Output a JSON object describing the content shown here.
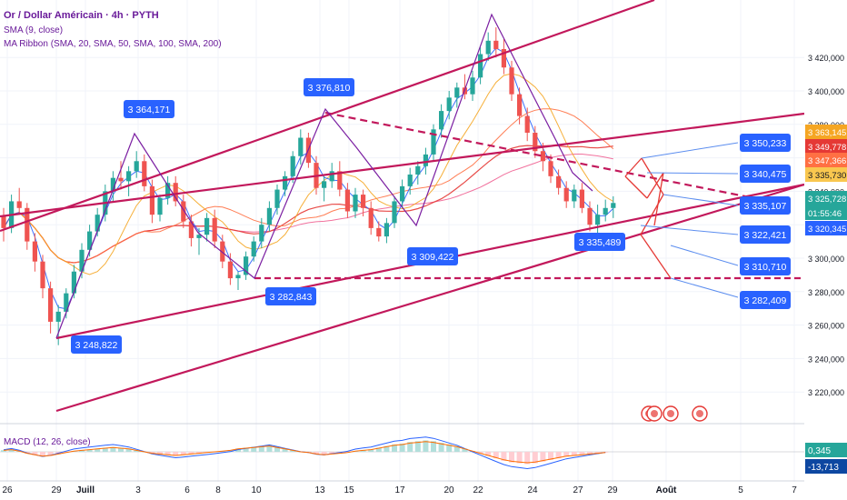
{
  "legend": {
    "symbol": "Or / Dollar Américain · 4h · PYTH",
    "sma": "SMA (9, close)",
    "ribbon": "MA Ribbon (SMA, 20, SMA, 50, SMA, 100, SMA, 200)",
    "macd": "MACD (12, 26, close)"
  },
  "colors": {
    "bull": "#26a69a",
    "bear": "#ef5350",
    "channel": "#c2185b",
    "sma9": "#2962ff",
    "sma20": "#f5a623",
    "sma50": "#ff7043",
    "sma100": "#e53935",
    "sma200": "#f06292",
    "callout": "#2962ff",
    "macd_line": "#2962ff",
    "signal_line": "#ff6d00"
  },
  "chart_data": [
    {
      "type": "candlestick",
      "title": "Or / Dollar Américain · 4h · PYTH",
      "y_range": [
        3200,
        3440
      ],
      "price_ticks": [
        "3 220,000",
        "3 240,000",
        "3 260,000",
        "3 280,000",
        "3 300,000",
        "3 320,000",
        "3 340,000",
        "3 360,000",
        "3 380,000",
        "3 400,000",
        "3 420,000"
      ],
      "x_ticks": [
        "26",
        "29",
        "Juill",
        "3",
        "6",
        "8",
        "10",
        "13",
        "15",
        "17",
        "20",
        "22",
        "24",
        "27",
        "29",
        "Août",
        "5",
        "7"
      ],
      "candles": [
        [
          3325,
          3330,
          3310,
          3318
        ],
        [
          3318,
          3338,
          3315,
          3334
        ],
        [
          3334,
          3342,
          3326,
          3330
        ],
        [
          3330,
          3333,
          3305,
          3310
        ],
        [
          3310,
          3315,
          3292,
          3298
        ],
        [
          3298,
          3302,
          3276,
          3282
        ],
        [
          3282,
          3286,
          3255,
          3262
        ],
        [
          3262,
          3272,
          3248,
          3268
        ],
        [
          3268,
          3282,
          3264,
          3279
        ],
        [
          3279,
          3296,
          3276,
          3292
        ],
        [
          3292,
          3309,
          3288,
          3305
        ],
        [
          3305,
          3320,
          3301,
          3316
        ],
        [
          3316,
          3330,
          3313,
          3326
        ],
        [
          3326,
          3344,
          3322,
          3340
        ],
        [
          3340,
          3352,
          3334,
          3348
        ],
        [
          3348,
          3358,
          3341,
          3346
        ],
        [
          3346,
          3355,
          3337,
          3352
        ],
        [
          3352,
          3364,
          3348,
          3358
        ],
        [
          3358,
          3362,
          3340,
          3343
        ],
        [
          3343,
          3347,
          3321,
          3326
        ],
        [
          3326,
          3338,
          3322,
          3336
        ],
        [
          3336,
          3349,
          3332,
          3345
        ],
        [
          3345,
          3349,
          3331,
          3334
        ],
        [
          3334,
          3338,
          3318,
          3322
        ],
        [
          3322,
          3326,
          3307,
          3312
        ],
        [
          3312,
          3318,
          3302,
          3314
        ],
        [
          3314,
          3327,
          3310,
          3324
        ],
        [
          3324,
          3329,
          3306,
          3310
        ],
        [
          3310,
          3314,
          3294,
          3298
        ],
        [
          3298,
          3303,
          3284,
          3288
        ],
        [
          3288,
          3292,
          3281,
          3290
        ],
        [
          3290,
          3304,
          3287,
          3301
        ],
        [
          3301,
          3313,
          3298,
          3310
        ],
        [
          3310,
          3324,
          3306,
          3320
        ],
        [
          3320,
          3334,
          3316,
          3330
        ],
        [
          3330,
          3344,
          3326,
          3341
        ],
        [
          3341,
          3352,
          3337,
          3349
        ],
        [
          3349,
          3364,
          3345,
          3361
        ],
        [
          3361,
          3377,
          3356,
          3372
        ],
        [
          3372,
          3375,
          3354,
          3357
        ],
        [
          3357,
          3361,
          3338,
          3342
        ],
        [
          3342,
          3349,
          3334,
          3346
        ],
        [
          3346,
          3357,
          3342,
          3352
        ],
        [
          3352,
          3358,
          3337,
          3341
        ],
        [
          3341,
          3345,
          3324,
          3328
        ],
        [
          3328,
          3342,
          3324,
          3338
        ],
        [
          3338,
          3341,
          3325,
          3330
        ],
        [
          3330,
          3334,
          3314,
          3318
        ],
        [
          3318,
          3322,
          3310,
          3313
        ],
        [
          3313,
          3324,
          3309,
          3321
        ],
        [
          3321,
          3337,
          3318,
          3334
        ],
        [
          3334,
          3347,
          3330,
          3343
        ],
        [
          3343,
          3354,
          3338,
          3350
        ],
        [
          3350,
          3358,
          3344,
          3355
        ],
        [
          3355,
          3366,
          3350,
          3362
        ],
        [
          3362,
          3380,
          3358,
          3377
        ],
        [
          3377,
          3392,
          3372,
          3388
        ],
        [
          3388,
          3400,
          3383,
          3396
        ],
        [
          3396,
          3405,
          3390,
          3402
        ],
        [
          3402,
          3410,
          3395,
          3398
        ],
        [
          3398,
          3412,
          3394,
          3408
        ],
        [
          3408,
          3426,
          3404,
          3422
        ],
        [
          3422,
          3435,
          3418,
          3430
        ],
        [
          3430,
          3438,
          3420,
          3425
        ],
        [
          3425,
          3431,
          3410,
          3414
        ],
        [
          3414,
          3418,
          3394,
          3398
        ],
        [
          3398,
          3402,
          3380,
          3385
        ],
        [
          3385,
          3390,
          3370,
          3375
        ],
        [
          3375,
          3379,
          3360,
          3364
        ],
        [
          3364,
          3369,
          3352,
          3358
        ],
        [
          3358,
          3362,
          3345,
          3349
        ],
        [
          3349,
          3353,
          3338,
          3342
        ],
        [
          3342,
          3346,
          3330,
          3334
        ],
        [
          3334,
          3344,
          3330,
          3341
        ],
        [
          3341,
          3345,
          3327,
          3330
        ],
        [
          3330,
          3334,
          3316,
          3320
        ],
        [
          3320,
          3332,
          3314,
          3326
        ],
        [
          3326,
          3335,
          3322,
          3330
        ],
        [
          3330,
          3337,
          3324,
          3333
        ]
      ],
      "callouts": [
        "3 364,171",
        "3 376,810",
        "3 248,822",
        "3 282,843",
        "3 309,422",
        "3 335,489",
        "3 350,233",
        "3 340,475",
        "3 335,107",
        "3 322,421",
        "3 310,710",
        "3 282,409"
      ],
      "right_labels": [
        {
          "text": "3 363,145",
          "color": "#f5a623"
        },
        {
          "text": "3 349,778",
          "color": "#e53935"
        },
        {
          "text": "3 347,366",
          "color": "#ff7043"
        },
        {
          "text": "3 335,730",
          "color": "#f9c74f"
        },
        {
          "text": "3 325,728",
          "color": "#26a69a"
        },
        {
          "text": "01:55:46",
          "color": "#26a69a"
        },
        {
          "text": "3 320,345",
          "color": "#2962ff"
        }
      ]
    },
    {
      "type": "macd",
      "title": "MACD (12, 26, close)",
      "labels": [
        "0,345",
        "-13,713"
      ],
      "histogram": [
        2,
        3,
        1,
        -2,
        -4,
        -6,
        -5,
        -3,
        -1,
        1,
        2,
        3,
        4,
        5,
        6,
        5,
        4,
        2,
        0,
        -2,
        -3,
        -4,
        -5,
        -4,
        -3,
        -2,
        -1,
        0,
        1,
        2,
        4,
        5,
        6,
        7,
        8,
        6,
        4,
        2,
        0,
        -1,
        -3,
        -4,
        -3,
        -2,
        -1,
        1,
        2,
        3,
        5,
        7,
        9,
        10,
        12,
        13,
        14,
        13,
        11,
        9,
        7,
        4,
        1,
        -2,
        -5,
        -8,
        -11,
        -13,
        -14,
        -15,
        -14,
        -12,
        -10,
        -8,
        -6,
        -5,
        -4,
        -3,
        -2,
        -1
      ]
    }
  ]
}
